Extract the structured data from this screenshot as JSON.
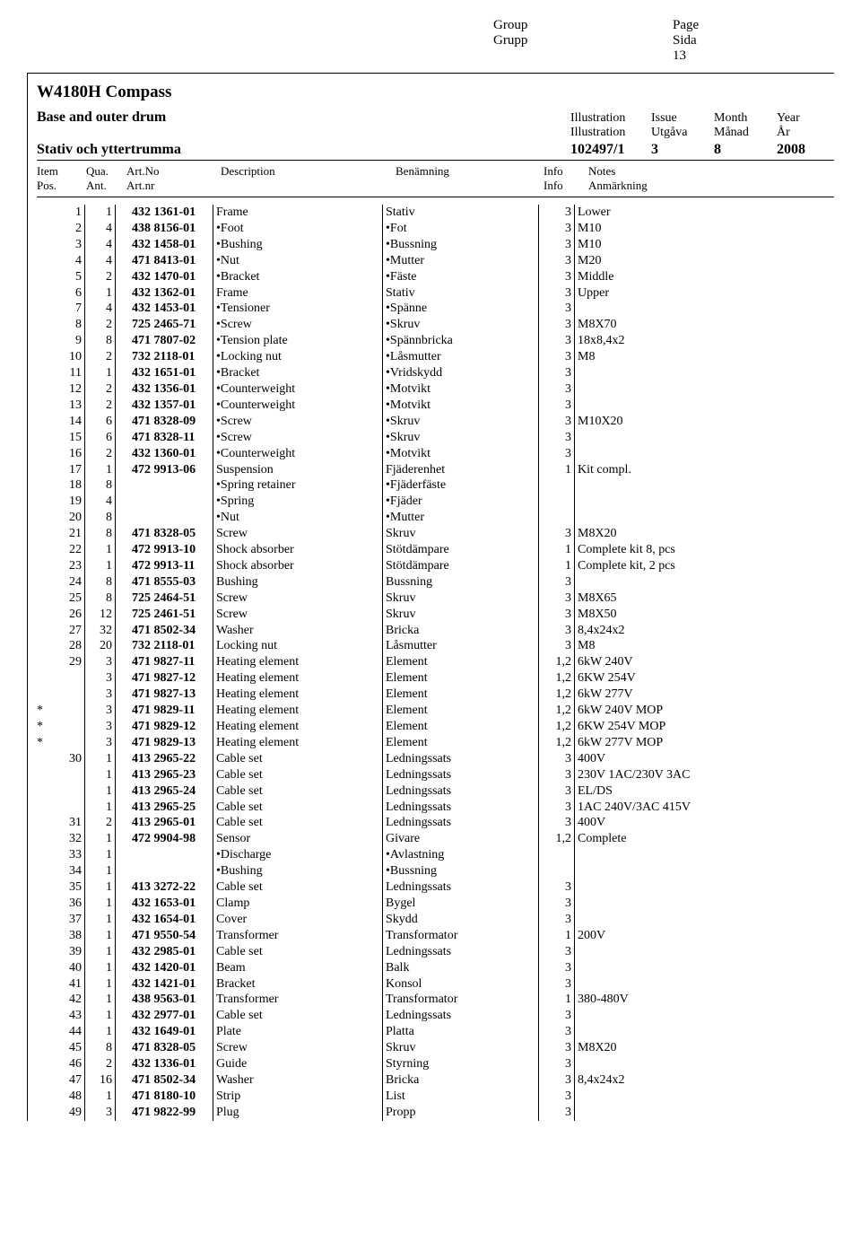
{
  "header": {
    "group_en": "Group",
    "group_sv": "Grupp",
    "page_en": "Page",
    "page_sv": "Sida",
    "page_num": "13"
  },
  "doc": {
    "title": "W4180H Compass",
    "subtitle_en": "Base and outer drum",
    "subtitle_sv": "Stativ och yttertrumma",
    "meta_labels": {
      "illustration_en": "Illustration",
      "illustration_sv": "Illustration",
      "issue_en": "Issue",
      "issue_sv": "Utgåva",
      "month_en": "Month",
      "month_sv": "Månad",
      "year_en": "Year",
      "year_sv": "År"
    },
    "meta_values": {
      "illustration": "102497/1",
      "issue": "3",
      "month": "8",
      "year": "2008"
    }
  },
  "cols": {
    "item_en": "Item",
    "item_sv": "Pos.",
    "qua_en": "Qua.",
    "qua_sv": "Ant.",
    "artno_en": "Art.No",
    "artno_sv": "Art.nr",
    "desc_en": "Description",
    "ben_sv": "Benämning",
    "info_en": "Info",
    "info_sv": "Info",
    "notes_en": "Notes",
    "notes_sv": "Anmärkning"
  },
  "rows": [
    {
      "star": "",
      "item": "1",
      "qua": "1",
      "artno": "432 1361-01",
      "desc": "Frame",
      "ben": "Stativ",
      "info": "3",
      "notes": "Lower"
    },
    {
      "star": "",
      "item": "2",
      "qua": "4",
      "artno": "438 8156-01",
      "desc": "•Foot",
      "ben": "•Fot",
      "info": "3",
      "notes": "M10"
    },
    {
      "star": "",
      "item": "3",
      "qua": "4",
      "artno": "432 1458-01",
      "desc": "•Bushing",
      "ben": "•Bussning",
      "info": "3",
      "notes": "M10"
    },
    {
      "star": "",
      "item": "4",
      "qua": "4",
      "artno": "471 8413-01",
      "desc": "•Nut",
      "ben": "•Mutter",
      "info": "3",
      "notes": "M20"
    },
    {
      "star": "",
      "item": "5",
      "qua": "2",
      "artno": "432 1470-01",
      "desc": "•Bracket",
      "ben": "•Fäste",
      "info": "3",
      "notes": "Middle"
    },
    {
      "star": "",
      "item": "6",
      "qua": "1",
      "artno": "432 1362-01",
      "desc": "Frame",
      "ben": "Stativ",
      "info": "3",
      "notes": "Upper"
    },
    {
      "star": "",
      "item": "7",
      "qua": "4",
      "artno": "432 1453-01",
      "desc": "•Tensioner",
      "ben": "•Spänne",
      "info": "3",
      "notes": ""
    },
    {
      "star": "",
      "item": "8",
      "qua": "2",
      "artno": "725 2465-71",
      "desc": "•Screw",
      "ben": "•Skruv",
      "info": "3",
      "notes": "M8X70"
    },
    {
      "star": "",
      "item": "9",
      "qua": "8",
      "artno": "471 7807-02",
      "desc": "•Tension plate",
      "ben": "•Spännbricka",
      "info": "3",
      "notes": "18x8,4x2"
    },
    {
      "star": "",
      "item": "10",
      "qua": "2",
      "artno": "732 2118-01",
      "desc": "•Locking nut",
      "ben": "•Låsmutter",
      "info": "3",
      "notes": "M8"
    },
    {
      "star": "",
      "item": "11",
      "qua": "1",
      "artno": "432 1651-01",
      "desc": "•Bracket",
      "ben": "•Vridskydd",
      "info": "3",
      "notes": ""
    },
    {
      "star": "",
      "item": "12",
      "qua": "2",
      "artno": "432 1356-01",
      "desc": "•Counterweight",
      "ben": "•Motvikt",
      "info": "3",
      "notes": ""
    },
    {
      "star": "",
      "item": "13",
      "qua": "2",
      "artno": "432 1357-01",
      "desc": "•Counterweight",
      "ben": "•Motvikt",
      "info": "3",
      "notes": ""
    },
    {
      "star": "",
      "item": "14",
      "qua": "6",
      "artno": "471 8328-09",
      "desc": "•Screw",
      "ben": "•Skruv",
      "info": "3",
      "notes": "M10X20"
    },
    {
      "star": "",
      "item": "15",
      "qua": "6",
      "artno": "471 8328-11",
      "desc": "•Screw",
      "ben": "•Skruv",
      "info": "3",
      "notes": ""
    },
    {
      "star": "",
      "item": "16",
      "qua": "2",
      "artno": "432 1360-01",
      "desc": "•Counterweight",
      "ben": "•Motvikt",
      "info": "3",
      "notes": ""
    },
    {
      "star": "",
      "item": "17",
      "qua": "1",
      "artno": "472 9913-06",
      "desc": "Suspension",
      "ben": "Fjäderenhet",
      "info": "1",
      "notes": "Kit compl."
    },
    {
      "star": "",
      "item": "18",
      "qua": "8",
      "artno": "",
      "desc": "•Spring retainer",
      "ben": "•Fjäderfäste",
      "info": "",
      "notes": ""
    },
    {
      "star": "",
      "item": "19",
      "qua": "4",
      "artno": "",
      "desc": "•Spring",
      "ben": "•Fjäder",
      "info": "",
      "notes": ""
    },
    {
      "star": "",
      "item": "20",
      "qua": "8",
      "artno": "",
      "desc": "•Nut",
      "ben": "•Mutter",
      "info": "",
      "notes": ""
    },
    {
      "star": "",
      "item": "21",
      "qua": "8",
      "artno": "471 8328-05",
      "desc": "Screw",
      "ben": "Skruv",
      "info": "3",
      "notes": "M8X20"
    },
    {
      "star": "",
      "item": "22",
      "qua": "1",
      "artno": "472 9913-10",
      "desc": "Shock absorber",
      "ben": "Stötdämpare",
      "info": "1",
      "notes": "Complete kit 8, pcs"
    },
    {
      "star": "",
      "item": "23",
      "qua": "1",
      "artno": "472 9913-11",
      "desc": "Shock absorber",
      "ben": "Stötdämpare",
      "info": "1",
      "notes": "Complete kit, 2 pcs"
    },
    {
      "star": "",
      "item": "24",
      "qua": "8",
      "artno": "471 8555-03",
      "desc": "Bushing",
      "ben": "Bussning",
      "info": "3",
      "notes": ""
    },
    {
      "star": "",
      "item": "25",
      "qua": "8",
      "artno": "725 2464-51",
      "desc": "Screw",
      "ben": "Skruv",
      "info": "3",
      "notes": "M8X65"
    },
    {
      "star": "",
      "item": "26",
      "qua": "12",
      "artno": "725 2461-51",
      "desc": "Screw",
      "ben": "Skruv",
      "info": "3",
      "notes": "M8X50"
    },
    {
      "star": "",
      "item": "27",
      "qua": "32",
      "artno": "471 8502-34",
      "desc": "Washer",
      "ben": "Bricka",
      "info": "3",
      "notes": "8,4x24x2"
    },
    {
      "star": "",
      "item": "28",
      "qua": "20",
      "artno": "732 2118-01",
      "desc": "Locking nut",
      "ben": "Låsmutter",
      "info": "3",
      "notes": "M8"
    },
    {
      "star": "",
      "item": "29",
      "qua": "3",
      "artno": "471 9827-11",
      "desc": "Heating element",
      "ben": "Element",
      "info": "1,2",
      "notes": "6kW 240V"
    },
    {
      "star": "",
      "item": "",
      "qua": "3",
      "artno": "471 9827-12",
      "desc": "Heating element",
      "ben": "Element",
      "info": "1,2",
      "notes": "6KW 254V"
    },
    {
      "star": "",
      "item": "",
      "qua": "3",
      "artno": "471 9827-13",
      "desc": "Heating element",
      "ben": "Element",
      "info": "1,2",
      "notes": "6kW 277V"
    },
    {
      "star": "*",
      "item": "",
      "qua": "3",
      "artno": "471 9829-11",
      "desc": "Heating element",
      "ben": "Element",
      "info": "1,2",
      "notes": "6kW 240V MOP"
    },
    {
      "star": "*",
      "item": "",
      "qua": "3",
      "artno": "471 9829-12",
      "desc": "Heating element",
      "ben": "Element",
      "info": "1,2",
      "notes": "6KW 254V MOP"
    },
    {
      "star": "*",
      "item": "",
      "qua": "3",
      "artno": "471 9829-13",
      "desc": "Heating element",
      "ben": "Element",
      "info": "1,2",
      "notes": "6kW 277V MOP"
    },
    {
      "star": "",
      "item": "30",
      "qua": "1",
      "artno": "413 2965-22",
      "desc": "Cable set",
      "ben": "Ledningssats",
      "info": "3",
      "notes": "400V"
    },
    {
      "star": "",
      "item": "",
      "qua": "1",
      "artno": "413 2965-23",
      "desc": "Cable set",
      "ben": "Ledningssats",
      "info": "3",
      "notes": "230V 1AC/230V 3AC"
    },
    {
      "star": "",
      "item": "",
      "qua": "1",
      "artno": "413 2965-24",
      "desc": "Cable set",
      "ben": "Ledningssats",
      "info": "3",
      "notes": "EL/DS"
    },
    {
      "star": "",
      "item": "",
      "qua": "1",
      "artno": "413 2965-25",
      "desc": "Cable set",
      "ben": "Ledningssats",
      "info": "3",
      "notes": "1AC 240V/3AC 415V"
    },
    {
      "star": "",
      "item": "31",
      "qua": "2",
      "artno": "413 2965-01",
      "desc": "Cable set",
      "ben": "Ledningssats",
      "info": "3",
      "notes": "400V"
    },
    {
      "star": "",
      "item": "32",
      "qua": "1",
      "artno": "472 9904-98",
      "desc": "Sensor",
      "ben": "Givare",
      "info": "1,2",
      "notes": "Complete"
    },
    {
      "star": "",
      "item": "33",
      "qua": "1",
      "artno": "",
      "desc": "•Discharge",
      "ben": "•Avlastning",
      "info": "",
      "notes": ""
    },
    {
      "star": "",
      "item": "34",
      "qua": "1",
      "artno": "",
      "desc": "•Bushing",
      "ben": "•Bussning",
      "info": "",
      "notes": ""
    },
    {
      "star": "",
      "item": "35",
      "qua": "1",
      "artno": "413 3272-22",
      "desc": "Cable set",
      "ben": "Ledningssats",
      "info": "3",
      "notes": ""
    },
    {
      "star": "",
      "item": "36",
      "qua": "1",
      "artno": "432 1653-01",
      "desc": "Clamp",
      "ben": "Bygel",
      "info": "3",
      "notes": ""
    },
    {
      "star": "",
      "item": "37",
      "qua": "1",
      "artno": "432 1654-01",
      "desc": "Cover",
      "ben": "Skydd",
      "info": "3",
      "notes": ""
    },
    {
      "star": "",
      "item": "38",
      "qua": "1",
      "artno": "471 9550-54",
      "desc": "Transformer",
      "ben": "Transformator",
      "info": "1",
      "notes": "200V"
    },
    {
      "star": "",
      "item": "39",
      "qua": "1",
      "artno": "432 2985-01",
      "desc": "Cable set",
      "ben": "Ledningssats",
      "info": "3",
      "notes": ""
    },
    {
      "star": "",
      "item": "40",
      "qua": "1",
      "artno": "432 1420-01",
      "desc": "Beam",
      "ben": "Balk",
      "info": "3",
      "notes": ""
    },
    {
      "star": "",
      "item": "41",
      "qua": "1",
      "artno": "432 1421-01",
      "desc": "Bracket",
      "ben": "Konsol",
      "info": "3",
      "notes": ""
    },
    {
      "star": "",
      "item": "42",
      "qua": "1",
      "artno": "438 9563-01",
      "desc": "Transformer",
      "ben": "Transformator",
      "info": "1",
      "notes": "380-480V"
    },
    {
      "star": "",
      "item": "43",
      "qua": "1",
      "artno": "432 2977-01",
      "desc": "Cable set",
      "ben": "Ledningssats",
      "info": "3",
      "notes": ""
    },
    {
      "star": "",
      "item": "44",
      "qua": "1",
      "artno": "432 1649-01",
      "desc": "Plate",
      "ben": "Platta",
      "info": "3",
      "notes": ""
    },
    {
      "star": "",
      "item": "45",
      "qua": "8",
      "artno": "471 8328-05",
      "desc": "Screw",
      "ben": "Skruv",
      "info": "3",
      "notes": "M8X20"
    },
    {
      "star": "",
      "item": "46",
      "qua": "2",
      "artno": "432 1336-01",
      "desc": "Guide",
      "ben": "Styrning",
      "info": "3",
      "notes": ""
    },
    {
      "star": "",
      "item": "47",
      "qua": "16",
      "artno": "471 8502-34",
      "desc": "Washer",
      "ben": "Bricka",
      "info": "3",
      "notes": "8,4x24x2"
    },
    {
      "star": "",
      "item": "48",
      "qua": "1",
      "artno": "471 8180-10",
      "desc": "Strip",
      "ben": "List",
      "info": "3",
      "notes": ""
    },
    {
      "star": "",
      "item": "49",
      "qua": "3",
      "artno": "471 9822-99",
      "desc": "Plug",
      "ben": "Propp",
      "info": "3",
      "notes": ""
    }
  ]
}
